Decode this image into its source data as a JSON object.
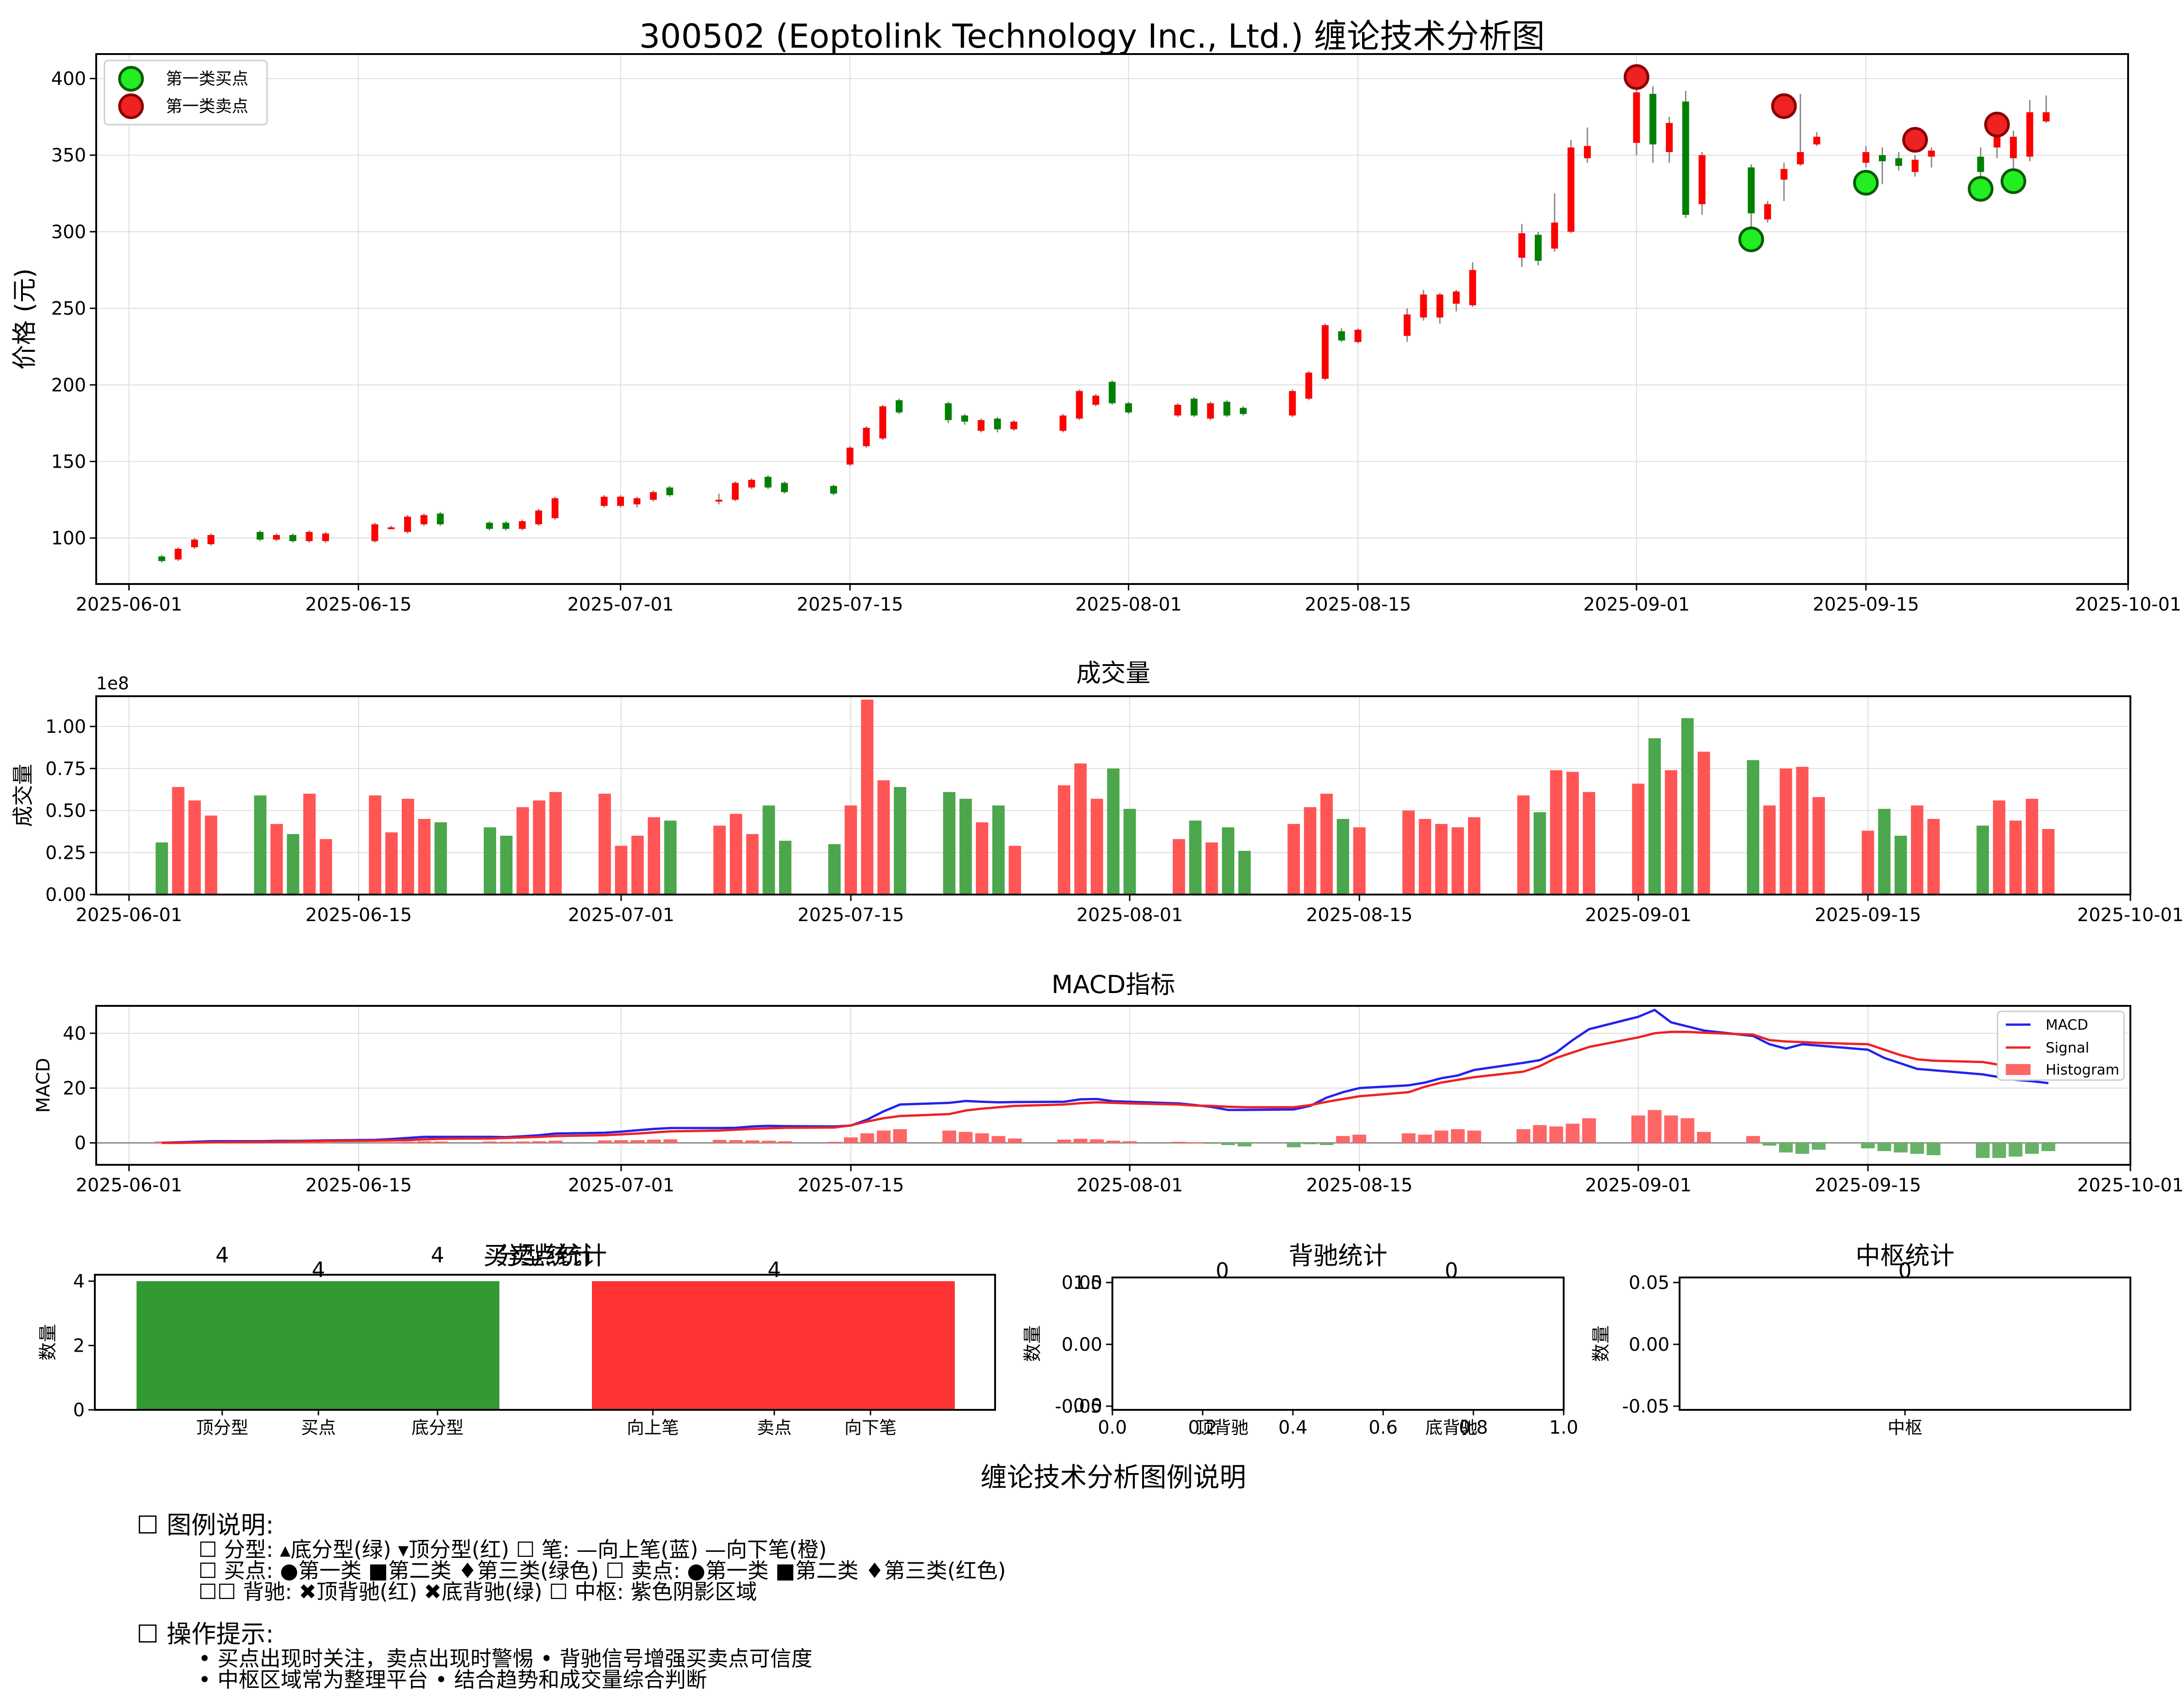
{
  "title": "300502 (Eoptolink Technology Inc., Ltd.) 缠论技术分析图",
  "colors": {
    "up": "#ff0000",
    "down": "#008000",
    "vol_up": "#ff5555",
    "vol_down": "#4ca64c",
    "macd": "#2222ee",
    "signal": "#ee2222",
    "buy": "#22ee22",
    "sell": "#ee2222"
  },
  "chart_data": [
    {
      "type": "candlestick",
      "ylabel": "价格 (元)",
      "ylim": [
        70,
        416
      ],
      "yticks": [
        100,
        150,
        200,
        250,
        300,
        350,
        400
      ],
      "xlim": [
        "2025-05-30",
        "2025-10-01"
      ],
      "xticks": [
        "2025-06-01",
        "2025-06-15",
        "2025-07-01",
        "2025-07-15",
        "2025-08-01",
        "2025-08-15",
        "2025-09-01",
        "2025-09-15",
        "2025-10-01"
      ],
      "legend": {
        "position": "upper left",
        "entries": [
          "第一类买点",
          "第一类卖点"
        ]
      },
      "candles": [
        [
          "2025-06-03",
          88,
          85,
          89,
          84
        ],
        [
          "2025-06-04",
          86,
          93,
          94,
          85
        ],
        [
          "2025-06-05",
          94,
          99,
          100,
          93
        ],
        [
          "2025-06-06",
          96,
          102,
          103,
          95
        ],
        [
          "2025-06-09",
          104,
          99,
          105,
          98
        ],
        [
          "2025-06-10",
          99,
          102,
          103,
          98
        ],
        [
          "2025-06-11",
          102,
          98,
          103,
          97
        ],
        [
          "2025-06-12",
          98,
          104,
          105,
          97
        ],
        [
          "2025-06-13",
          98,
          103,
          104,
          97
        ],
        [
          "2025-06-16",
          98,
          109,
          110,
          97
        ],
        [
          "2025-06-17",
          107,
          107,
          108,
          106
        ],
        [
          "2025-06-18",
          104,
          114,
          115,
          103
        ],
        [
          "2025-06-19",
          109,
          115,
          116,
          108
        ],
        [
          "2025-06-20",
          116,
          109,
          117,
          108
        ],
        [
          "2025-06-23",
          110,
          106,
          111,
          105
        ],
        [
          "2025-06-24",
          110,
          106,
          111,
          105
        ],
        [
          "2025-06-25",
          106,
          111,
          112,
          105
        ],
        [
          "2025-06-26",
          109,
          118,
          119,
          108
        ],
        [
          "2025-06-27",
          113,
          126,
          127,
          112
        ],
        [
          "2025-06-30",
          121,
          127,
          128,
          120
        ],
        [
          "2025-07-01",
          121,
          127,
          128,
          120
        ],
        [
          "2025-07-02",
          122,
          126,
          127,
          120
        ],
        [
          "2025-07-03",
          125,
          130,
          131,
          124
        ],
        [
          "2025-07-04",
          133,
          128,
          134,
          127
        ],
        [
          "2025-07-07",
          125,
          125,
          129,
          122
        ],
        [
          "2025-07-08",
          125,
          136,
          137,
          124
        ],
        [
          "2025-07-09",
          133,
          138,
          139,
          132
        ],
        [
          "2025-07-10",
          140,
          133,
          141,
          132
        ],
        [
          "2025-07-11",
          136,
          130,
          137,
          129
        ],
        [
          "2025-07-14",
          134,
          129,
          135,
          128
        ],
        [
          "2025-07-15",
          148,
          159,
          160,
          147
        ],
        [
          "2025-07-16",
          160,
          172,
          173,
          159
        ],
        [
          "2025-07-17",
          165,
          186,
          187,
          164
        ],
        [
          "2025-07-18",
          190,
          182,
          191,
          181
        ],
        [
          "2025-07-21",
          188,
          177,
          189,
          175
        ],
        [
          "2025-07-22",
          180,
          176,
          181,
          174
        ],
        [
          "2025-07-23",
          170,
          177,
          178,
          169
        ],
        [
          "2025-07-24",
          178,
          171,
          179,
          169
        ],
        [
          "2025-07-25",
          171,
          176,
          177,
          170
        ],
        [
          "2025-07-28",
          170,
          180,
          181,
          169
        ],
        [
          "2025-07-29",
          178,
          196,
          197,
          177
        ],
        [
          "2025-07-30",
          187,
          193,
          194,
          186
        ],
        [
          "2025-07-31",
          202,
          188,
          203,
          187
        ],
        [
          "2025-08-01",
          188,
          182,
          189,
          181
        ],
        [
          "2025-08-04",
          180,
          187,
          188,
          179
        ],
        [
          "2025-08-05",
          191,
          180,
          192,
          179
        ],
        [
          "2025-08-06",
          178,
          188,
          189,
          177
        ],
        [
          "2025-08-07",
          189,
          180,
          190,
          179
        ],
        [
          "2025-08-08",
          185,
          181,
          186,
          180
        ],
        [
          "2025-08-11",
          180,
          196,
          197,
          179
        ],
        [
          "2025-08-12",
          191,
          208,
          209,
          190
        ],
        [
          "2025-08-13",
          204,
          239,
          240,
          203
        ],
        [
          "2025-08-14",
          235,
          229,
          237,
          228
        ],
        [
          "2025-08-15",
          228,
          236,
          237,
          227
        ],
        [
          "2025-08-18",
          232,
          246,
          250,
          228
        ],
        [
          "2025-08-19",
          244,
          259,
          262,
          242
        ],
        [
          "2025-08-20",
          244,
          259,
          260,
          240
        ],
        [
          "2025-08-21",
          253,
          261,
          262,
          248
        ],
        [
          "2025-08-22",
          252,
          275,
          280,
          251
        ],
        [
          "2025-08-25",
          283,
          299,
          305,
          277
        ],
        [
          "2025-08-26",
          298,
          281,
          300,
          278
        ],
        [
          "2025-08-27",
          289,
          306,
          325,
          287
        ],
        [
          "2025-08-28",
          300,
          355,
          360,
          299
        ],
        [
          "2025-08-29",
          348,
          356,
          368,
          345
        ],
        [
          "2025-09-01",
          358,
          391,
          406,
          350
        ],
        [
          "2025-09-02",
          390,
          357,
          395,
          345
        ],
        [
          "2025-09-03",
          352,
          371,
          375,
          345
        ],
        [
          "2025-09-04",
          385,
          311,
          392,
          309
        ],
        [
          "2025-09-05",
          318,
          350,
          352,
          311
        ],
        [
          "2025-09-08",
          342,
          312,
          344,
          290
        ],
        [
          "2025-09-09",
          308,
          318,
          320,
          306
        ],
        [
          "2025-09-10",
          334,
          341,
          345,
          320
        ],
        [
          "2025-09-11",
          344,
          352,
          390,
          343
        ],
        [
          "2025-09-12",
          357,
          362,
          365,
          356
        ],
        [
          "2025-09-15",
          345,
          352,
          356,
          342
        ],
        [
          "2025-09-16",
          350,
          346,
          355,
          331
        ],
        [
          "2025-09-17",
          348,
          343,
          352,
          340
        ],
        [
          "2025-09-18",
          339,
          347,
          350,
          336
        ],
        [
          "2025-09-19",
          349,
          353,
          355,
          342
        ],
        [
          "2025-09-22",
          349,
          339,
          355,
          325
        ],
        [
          "2025-09-23",
          355,
          366,
          375,
          348
        ],
        [
          "2025-09-24",
          348,
          362,
          366,
          330
        ],
        [
          "2025-09-25",
          349,
          378,
          386,
          346
        ],
        [
          "2025-09-26",
          372,
          378,
          389,
          371
        ]
      ],
      "markers": {
        "buy_type1": [
          [
            "2025-09-08",
            295
          ],
          [
            "2025-09-15",
            332
          ],
          [
            "2025-09-22",
            328
          ],
          [
            "2025-09-24",
            333
          ]
        ],
        "sell_type1": [
          [
            "2025-09-01",
            401
          ],
          [
            "2025-09-10",
            382
          ],
          [
            "2025-09-18",
            360
          ],
          [
            "2025-09-23",
            370
          ]
        ]
      }
    },
    {
      "type": "bar",
      "title": "成交量",
      "ylabel": "成交量",
      "offset_text": "1e8",
      "ylim": [
        0,
        1.18
      ],
      "yticks": [
        0.0,
        0.25,
        0.5,
        0.75,
        1.0
      ],
      "values": [
        0.31,
        0.64,
        0.56,
        0.47,
        0.59,
        0.42,
        0.36,
        0.6,
        0.33,
        0.59,
        0.37,
        0.57,
        0.45,
        0.43,
        0.4,
        0.35,
        0.52,
        0.56,
        0.61,
        0.6,
        0.29,
        0.35,
        0.46,
        0.44,
        0.41,
        0.48,
        0.36,
        0.53,
        0.32,
        0.3,
        0.53,
        1.16,
        0.68,
        0.64,
        0.61,
        0.57,
        0.43,
        0.53,
        0.29,
        0.65,
        0.78,
        0.57,
        0.75,
        0.51,
        0.33,
        0.44,
        0.31,
        0.4,
        0.26,
        0.42,
        0.52,
        0.6,
        0.45,
        0.4,
        0.5,
        0.45,
        0.42,
        0.4,
        0.46,
        0.59,
        0.49,
        0.74,
        0.73,
        0.61,
        0.66,
        0.93,
        0.74,
        1.05,
        0.85,
        0.8,
        0.53,
        0.75,
        0.76,
        0.58,
        0.38,
        0.51,
        0.35,
        0.53,
        0.45,
        0.41,
        0.56,
        0.44,
        0.57,
        0.39
      ]
    },
    {
      "type": "line",
      "title": "MACD指标",
      "ylabel": "MACD",
      "ylim": [
        -8,
        50
      ],
      "yticks": [
        0,
        20,
        40
      ],
      "legend": {
        "position": "upper right",
        "entries": [
          "MACD",
          "Signal",
          "Histogram"
        ]
      },
      "series": [
        {
          "name": "MACD",
          "values": [
            0.0,
            0.2,
            0.4,
            0.6,
            0.6,
            0.7,
            0.7,
            0.8,
            0.9,
            1.1,
            1.4,
            1.8,
            2.2,
            2.2,
            2.2,
            2.1,
            2.4,
            2.8,
            3.4,
            3.7,
            4.1,
            4.6,
            5.1,
            5.4,
            5.4,
            5.5,
            6.0,
            6.2,
            6.1,
            6.0,
            6.3,
            8.5,
            11.5,
            14.0,
            14.6,
            15.3,
            15.0,
            14.8,
            14.9,
            15.0,
            15.9,
            16.0,
            15.2,
            15.0,
            14.4,
            13.8,
            13.1,
            12.0,
            12.0,
            12.2,
            13.5,
            16.5,
            18.5,
            20.0,
            21.0,
            22.0,
            23.6,
            24.6,
            26.6,
            29.2,
            30.2,
            33.0,
            37.5,
            41.5,
            46.0,
            48.5,
            44.0,
            42.5,
            41.0,
            39.0,
            36.0,
            34.4,
            36.0,
            35.5,
            34.0,
            31.0,
            29.0,
            27.0,
            26.5,
            25.0,
            24.0,
            23.0,
            22.5,
            21.8
          ]
        },
        {
          "name": "Signal",
          "values": [
            0.0,
            0.0,
            0.1,
            0.2,
            0.3,
            0.4,
            0.5,
            0.6,
            0.7,
            0.8,
            0.9,
            1.0,
            1.3,
            1.5,
            1.6,
            1.8,
            2.0,
            2.2,
            2.5,
            2.8,
            3.1,
            3.4,
            3.8,
            4.2,
            4.5,
            4.8,
            5.1,
            5.3,
            5.5,
            5.6,
            6.4,
            7.8,
            9.0,
            9.8,
            10.5,
            11.8,
            12.5,
            13.0,
            13.5,
            14.0,
            14.5,
            14.8,
            14.6,
            14.4,
            14.0,
            13.6,
            13.5,
            13.2,
            13.0,
            13.0,
            13.8,
            15.0,
            16.0,
            17.0,
            18.5,
            20.5,
            22.0,
            23.0,
            24.0,
            26.0,
            28.0,
            31.0,
            33.0,
            35.0,
            38.5,
            40.0,
            40.5,
            40.5,
            40.2,
            39.5,
            37.5,
            37.0,
            36.8,
            36.5,
            36.0,
            34.0,
            32.0,
            30.5,
            30.0,
            29.5,
            28.5,
            27.5,
            26.5,
            25.5
          ]
        }
      ],
      "histogram": [
        0.5,
        0.4,
        0.3,
        0.3,
        0.3,
        0.3,
        0.3,
        0.2,
        0.2,
        0.2,
        0.3,
        0.4,
        0.6,
        0.5,
        0.5,
        0.4,
        0.5,
        0.6,
        0.8,
        0.9,
        1.0,
        1.0,
        1.2,
        1.3,
        1.1,
        1.0,
        0.9,
        0.8,
        0.6,
        0.4,
        2.0,
        3.5,
        4.5,
        5.0,
        4.5,
        4.0,
        3.5,
        2.5,
        1.6,
        1.2,
        1.5,
        1.3,
        0.8,
        0.6,
        0.4,
        0.2,
        -0.3,
        -0.8,
        -1.3,
        -1.6,
        -0.5,
        -0.8,
        2.5,
        3.0,
        3.5,
        3.0,
        4.5,
        5.0,
        4.5,
        5.0,
        6.5,
        6.0,
        7.0,
        9.0,
        10.0,
        12.0,
        10.0,
        9.0,
        4.0,
        2.5,
        -1.0,
        -3.5,
        -4.0,
        -2.5,
        -2.0,
        -3.0,
        -3.5,
        -4.0,
        -4.5,
        -5.5,
        -5.5,
        -5.0,
        -4.0,
        -3.0
      ]
    },
    {
      "type": "bar",
      "title": "买卖点统计",
      "overlap_title": "分型统计",
      "ylabel": "数量",
      "ylim": [
        0,
        4.2
      ],
      "yticks": [
        0,
        2,
        4
      ],
      "categories": [
        "顶分型",
        "买点",
        "底分型",
        "向上笔",
        "卖点",
        "向下笔"
      ],
      "values": [
        4,
        4,
        4,
        4,
        4,
        4
      ],
      "label_values": [
        4,
        4,
        4,
        4
      ],
      "bars": [
        {
          "value": 4,
          "color": "#339933"
        },
        {
          "value": 4,
          "color": "#ff3333"
        }
      ]
    },
    {
      "type": "bar",
      "title": "背驰统计",
      "ylabel": "数量",
      "categories": [
        "顶背驰",
        "底背驰"
      ],
      "values": [
        0,
        0
      ],
      "yticks": [
        "0.05",
        "0.00",
        "-0.05"
      ],
      "yticks_overlap": [
        "1.0",
        "0.0"
      ],
      "xticks": [
        "0.0",
        "0.2",
        "0.4",
        "0.6",
        "0.8",
        "1.0"
      ],
      "ylim": [
        -0.055,
        0.055
      ]
    },
    {
      "type": "bar",
      "title": "中枢统计",
      "ylabel": "数量",
      "categories": [
        "中枢"
      ],
      "values": [
        0
      ],
      "yticks": [
        "0.05",
        "0.00",
        "-0.05"
      ],
      "ylim": [
        -0.055,
        0.055
      ]
    }
  ],
  "legend_panel": {
    "title": "缠论技术分析图例说明",
    "section1": {
      "header": "☐ 图例说明:",
      "lines": [
        "☐ 分型: ▴底分型(绿) ▾顶分型(红)  ☐ 笔: —向上笔(蓝) —向下笔(橙)",
        "☐ 买点: ●第一类 ■第二类 ♦第三类(绿色)  ☐ 卖点: ●第一类 ■第二类 ♦第三类(红色)",
        "☐☐ 背驰: ✖顶背驰(红) ✖底背驰(绿)  ☐ 中枢: 紫色阴影区域"
      ]
    },
    "section2": {
      "header": "☐ 操作提示:",
      "lines": [
        "• 买点出现时关注，卖点出现时警惕  • 背驰信号增强买卖点可信度",
        "• 中枢区域常为整理平台  • 结合趋势和成交量综合判断"
      ]
    }
  }
}
